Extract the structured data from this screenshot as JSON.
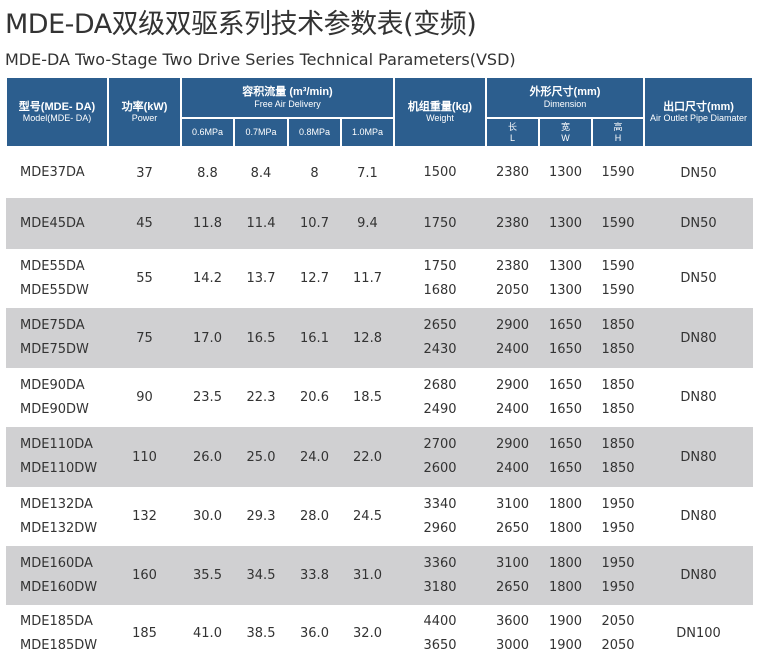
{
  "title": "MDE-DA双级双驱系列技术参数表(变频)",
  "subtitle": "MDE-DA Two-Stage Two Drive Series Technical Parameters(VSD)",
  "header": {
    "model": {
      "cn": "型号(MDE- DA)",
      "en": "Model(MDE- DA)"
    },
    "power": {
      "cn": "功率(kW)",
      "en": "Power"
    },
    "flow": {
      "cn": "容积流量 (m³/min)",
      "en": "Free Air Delivery",
      "sub": [
        "0.6MPa",
        "0.7MPa",
        "0.8MPa",
        "1.0MPa"
      ]
    },
    "weight": {
      "cn": "机组重量(kg)",
      "en": "Weight"
    },
    "dim": {
      "cn": "外形尺寸(mm)",
      "en": "Dimension",
      "sub": [
        {
          "cn": "长",
          "en": "L"
        },
        {
          "cn": "宽",
          "en": "W"
        },
        {
          "cn": "高",
          "en": "H"
        }
      ]
    },
    "outlet": {
      "cn": "出口尺寸(mm)",
      "en": "Air Outlet Pipe Diamater"
    }
  },
  "rows": [
    {
      "models": [
        "MDE37DA"
      ],
      "power": "37",
      "flow": [
        "8.8",
        "8.4",
        "8",
        "7.1"
      ],
      "weight": [
        "1500"
      ],
      "L": [
        "2380"
      ],
      "W": [
        "1300"
      ],
      "H": [
        "1590"
      ],
      "outlet": "DN50"
    },
    {
      "models": [
        "MDE45DA"
      ],
      "power": "45",
      "flow": [
        "11.8",
        "11.4",
        "10.7",
        "9.4"
      ],
      "weight": [
        "1750"
      ],
      "L": [
        "2380"
      ],
      "W": [
        "1300"
      ],
      "H": [
        "1590"
      ],
      "outlet": "DN50"
    },
    {
      "models": [
        "MDE55DA",
        "MDE55DW"
      ],
      "power": "55",
      "flow": [
        "14.2",
        "13.7",
        "12.7",
        "11.7"
      ],
      "weight": [
        "1750",
        "1680"
      ],
      "L": [
        "2380",
        "2050"
      ],
      "W": [
        "1300",
        "1300"
      ],
      "H": [
        "1590",
        "1590"
      ],
      "outlet": "DN50"
    },
    {
      "models": [
        "MDE75DA",
        "MDE75DW"
      ],
      "power": "75",
      "flow": [
        "17.0",
        "16.5",
        "16.1",
        "12.8"
      ],
      "weight": [
        "2650",
        "2430"
      ],
      "L": [
        "2900",
        "2400"
      ],
      "W": [
        "1650",
        "1650"
      ],
      "H": [
        "1850",
        "1850"
      ],
      "outlet": "DN80"
    },
    {
      "models": [
        "MDE90DA",
        "MDE90DW"
      ],
      "power": "90",
      "flow": [
        "23.5",
        "22.3",
        "20.6",
        "18.5"
      ],
      "weight": [
        "2680",
        "2490"
      ],
      "L": [
        "2900",
        "2400"
      ],
      "W": [
        "1650",
        "1650"
      ],
      "H": [
        "1850",
        "1850"
      ],
      "outlet": "DN80"
    },
    {
      "models": [
        "MDE110DA",
        "MDE110DW"
      ],
      "power": "110",
      "flow": [
        "26.0",
        "25.0",
        "24.0",
        "22.0"
      ],
      "weight": [
        "2700",
        "2600"
      ],
      "L": [
        "2900",
        "2400"
      ],
      "W": [
        "1650",
        "1650"
      ],
      "H": [
        "1850",
        "1850"
      ],
      "outlet": "DN80"
    },
    {
      "models": [
        "MDE132DA",
        "MDE132DW"
      ],
      "power": "132",
      "flow": [
        "30.0",
        "29.3",
        "28.0",
        "24.5"
      ],
      "weight": [
        "3340",
        "2960"
      ],
      "L": [
        "3100",
        "2650"
      ],
      "W": [
        "1800",
        "1800"
      ],
      "H": [
        "1950",
        "1950"
      ],
      "outlet": "DN80"
    },
    {
      "models": [
        "MDE160DA",
        "MDE160DW"
      ],
      "power": "160",
      "flow": [
        "35.5",
        "34.5",
        "33.8",
        "31.0"
      ],
      "weight": [
        "3360",
        "3180"
      ],
      "L": [
        "3100",
        "2650"
      ],
      "W": [
        "1800",
        "1800"
      ],
      "H": [
        "1950",
        "1950"
      ],
      "outlet": "DN80"
    },
    {
      "models": [
        "MDE185DA",
        "MDE185DW"
      ],
      "power": "185",
      "flow": [
        "41.0",
        "38.5",
        "36.0",
        "32.0"
      ],
      "weight": [
        "4400",
        "3650"
      ],
      "L": [
        "3600",
        "3000"
      ],
      "W": [
        "1900",
        "1900"
      ],
      "H": [
        "2050",
        "2050"
      ],
      "outlet": "DN100"
    }
  ]
}
